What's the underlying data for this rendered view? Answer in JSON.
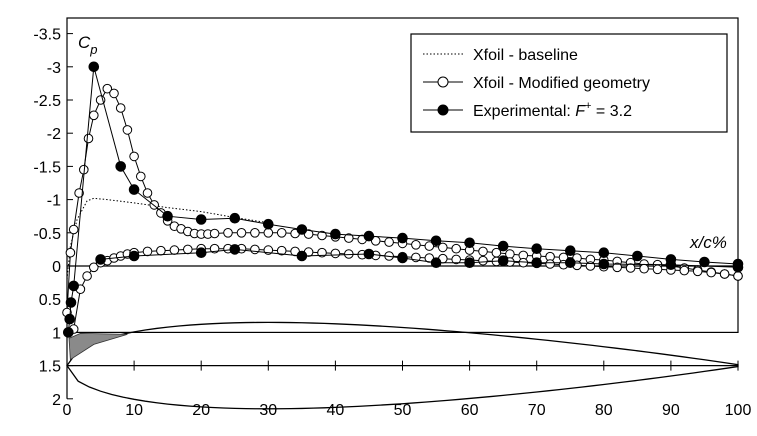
{
  "chart_data": {
    "type": "line",
    "xlabel": "x/c%",
    "ylabel": "C",
    "ylabel_sub": "p",
    "xlim": [
      0,
      100
    ],
    "ylim": [
      -3.5,
      2
    ],
    "y_inverted": true,
    "x_ticks": [
      "0",
      "10",
      "20",
      "30",
      "40",
      "50",
      "60",
      "70",
      "80",
      "90",
      "100"
    ],
    "y_ticks": [
      "-3.5",
      "-3",
      "-2.5",
      "-2",
      "-1.5",
      "-1",
      "-0.5",
      "0",
      "0.5",
      "1",
      "1.5",
      "2"
    ],
    "legend": {
      "placement": "top-right",
      "entries": [
        {
          "label": "Xfoil - baseline",
          "style": "dotted"
        },
        {
          "label": "Xfoil - Modified geometry",
          "style": "open-circle"
        },
        {
          "label": "Experimental: ",
          "label_italic": "F",
          "label_sup": "+",
          "label_tail": " = 3.2",
          "style": "filled-circle"
        }
      ]
    },
    "series": [
      {
        "name": "Xfoil - baseline",
        "style": "dotted",
        "upper": [
          [
            0,
            0.2
          ],
          [
            0.5,
            -0.3
          ],
          [
            1.5,
            -0.7
          ],
          [
            3,
            -0.98
          ],
          [
            4,
            -1.02
          ],
          [
            6,
            -1.0
          ],
          [
            10,
            -0.95
          ],
          [
            15,
            -0.88
          ],
          [
            20,
            -0.82
          ],
          [
            25,
            -0.73
          ],
          [
            30,
            -0.65
          ]
        ]
      },
      {
        "name": "Xfoil - Modified geometry",
        "style": "open-circle",
        "upper": [
          [
            0,
            0.7
          ],
          [
            0.5,
            -0.2
          ],
          [
            1,
            -0.55
          ],
          [
            1.8,
            -1.1
          ],
          [
            2.5,
            -1.45
          ],
          [
            3.2,
            -1.92
          ],
          [
            4,
            -2.27
          ],
          [
            5,
            -2.5
          ],
          [
            6,
            -2.67
          ],
          [
            7,
            -2.6
          ],
          [
            8,
            -2.38
          ],
          [
            9,
            -2.05
          ],
          [
            10,
            -1.65
          ],
          [
            11,
            -1.35
          ],
          [
            12,
            -1.1
          ],
          [
            13,
            -0.92
          ],
          [
            14,
            -0.8
          ],
          [
            15,
            -0.68
          ],
          [
            16,
            -0.6
          ],
          [
            17,
            -0.56
          ],
          [
            18,
            -0.52
          ],
          [
            19,
            -0.49
          ],
          [
            20,
            -0.48
          ],
          [
            21,
            -0.48
          ],
          [
            22,
            -0.49
          ],
          [
            24,
            -0.5
          ],
          [
            26,
            -0.5
          ],
          [
            28,
            -0.5
          ],
          [
            30,
            -0.5
          ],
          [
            32,
            -0.5
          ],
          [
            34,
            -0.49
          ],
          [
            36,
            -0.48
          ],
          [
            38,
            -0.46
          ],
          [
            40,
            -0.44
          ],
          [
            42,
            -0.42
          ],
          [
            44,
            -0.4
          ],
          [
            46,
            -0.38
          ],
          [
            48,
            -0.36
          ],
          [
            50,
            -0.34
          ],
          [
            52,
            -0.32
          ],
          [
            54,
            -0.3
          ],
          [
            56,
            -0.28
          ],
          [
            58,
            -0.26
          ],
          [
            60,
            -0.24
          ],
          [
            62,
            -0.22
          ],
          [
            64,
            -0.2
          ],
          [
            66,
            -0.18
          ],
          [
            68,
            -0.16
          ],
          [
            70,
            -0.15
          ],
          [
            72,
            -0.14
          ],
          [
            74,
            -0.13
          ],
          [
            76,
            -0.12
          ],
          [
            78,
            -0.1
          ],
          [
            80,
            -0.09
          ],
          [
            82,
            -0.07
          ],
          [
            84,
            -0.05
          ],
          [
            86,
            -0.03
          ],
          [
            88,
            -0.02
          ],
          [
            90,
            -0.0
          ],
          [
            92,
            0.03
          ],
          [
            94,
            0.06
          ],
          [
            96,
            0.09
          ],
          [
            98,
            0.12
          ],
          [
            100,
            0.15
          ]
        ],
        "lower": [
          [
            1,
            0.95
          ],
          [
            2,
            0.35
          ],
          [
            3,
            0.15
          ],
          [
            4,
            0.02
          ],
          [
            5,
            -0.05
          ],
          [
            6,
            -0.08
          ],
          [
            7,
            -0.12
          ],
          [
            8,
            -0.15
          ],
          [
            9,
            -0.18
          ],
          [
            10,
            -0.2
          ],
          [
            12,
            -0.22
          ],
          [
            14,
            -0.23
          ],
          [
            16,
            -0.24
          ],
          [
            18,
            -0.25
          ],
          [
            20,
            -0.26
          ],
          [
            22,
            -0.26
          ],
          [
            24,
            -0.26
          ],
          [
            26,
            -0.26
          ],
          [
            28,
            -0.25
          ],
          [
            30,
            -0.24
          ],
          [
            32,
            -0.23
          ],
          [
            34,
            -0.22
          ],
          [
            36,
            -0.21
          ],
          [
            38,
            -0.2
          ],
          [
            40,
            -0.19
          ],
          [
            42,
            -0.18
          ],
          [
            44,
            -0.17
          ],
          [
            46,
            -0.16
          ],
          [
            48,
            -0.15
          ],
          [
            50,
            -0.14
          ],
          [
            52,
            -0.13
          ],
          [
            54,
            -0.12
          ],
          [
            56,
            -0.11
          ],
          [
            58,
            -0.1
          ],
          [
            60,
            -0.09
          ],
          [
            62,
            -0.08
          ],
          [
            64,
            -0.07
          ],
          [
            66,
            -0.06
          ],
          [
            68,
            -0.05
          ],
          [
            70,
            -0.04
          ],
          [
            72,
            -0.03
          ],
          [
            74,
            -0.02
          ],
          [
            76,
            -0.01
          ],
          [
            78,
            0.0
          ],
          [
            80,
            0.01
          ],
          [
            82,
            0.02
          ],
          [
            84,
            0.03
          ],
          [
            86,
            0.04
          ],
          [
            88,
            0.05
          ],
          [
            90,
            0.06
          ],
          [
            92,
            0.07
          ],
          [
            94,
            0.08
          ],
          [
            96,
            0.1
          ],
          [
            98,
            0.12
          ],
          [
            100,
            0.15
          ]
        ]
      },
      {
        "name": "Experimental: F+ = 3.2",
        "style": "filled-circle",
        "upper": [
          [
            0.2,
            1.0
          ],
          [
            0.4,
            0.8
          ],
          [
            0.6,
            0.55
          ],
          [
            1,
            0.3
          ],
          [
            4,
            -3.0
          ],
          [
            8,
            -1.5
          ],
          [
            10,
            -1.15
          ],
          [
            15,
            -0.75
          ],
          [
            20,
            -0.7
          ],
          [
            25,
            -0.72
          ],
          [
            30,
            -0.63
          ],
          [
            35,
            -0.55
          ],
          [
            40,
            -0.48
          ],
          [
            45,
            -0.45
          ],
          [
            50,
            -0.42
          ],
          [
            55,
            -0.38
          ],
          [
            60,
            -0.35
          ],
          [
            65,
            -0.3
          ],
          [
            70,
            -0.26
          ],
          [
            75,
            -0.23
          ],
          [
            80,
            -0.2
          ],
          [
            85,
            -0.15
          ],
          [
            90,
            -0.1
          ],
          [
            95,
            -0.06
          ],
          [
            100,
            -0.03
          ]
        ],
        "lower": [
          [
            5,
            -0.1
          ],
          [
            10,
            -0.15
          ],
          [
            20,
            -0.2
          ],
          [
            25,
            -0.25
          ],
          [
            35,
            -0.15
          ],
          [
            45,
            -0.18
          ],
          [
            50,
            -0.12
          ],
          [
            55,
            -0.05
          ],
          [
            60,
            -0.05
          ],
          [
            65,
            -0.08
          ],
          [
            70,
            -0.05
          ],
          [
            75,
            -0.05
          ],
          [
            80,
            -0.03
          ],
          [
            90,
            -0.02
          ],
          [
            100,
            0.02
          ]
        ]
      }
    ]
  }
}
